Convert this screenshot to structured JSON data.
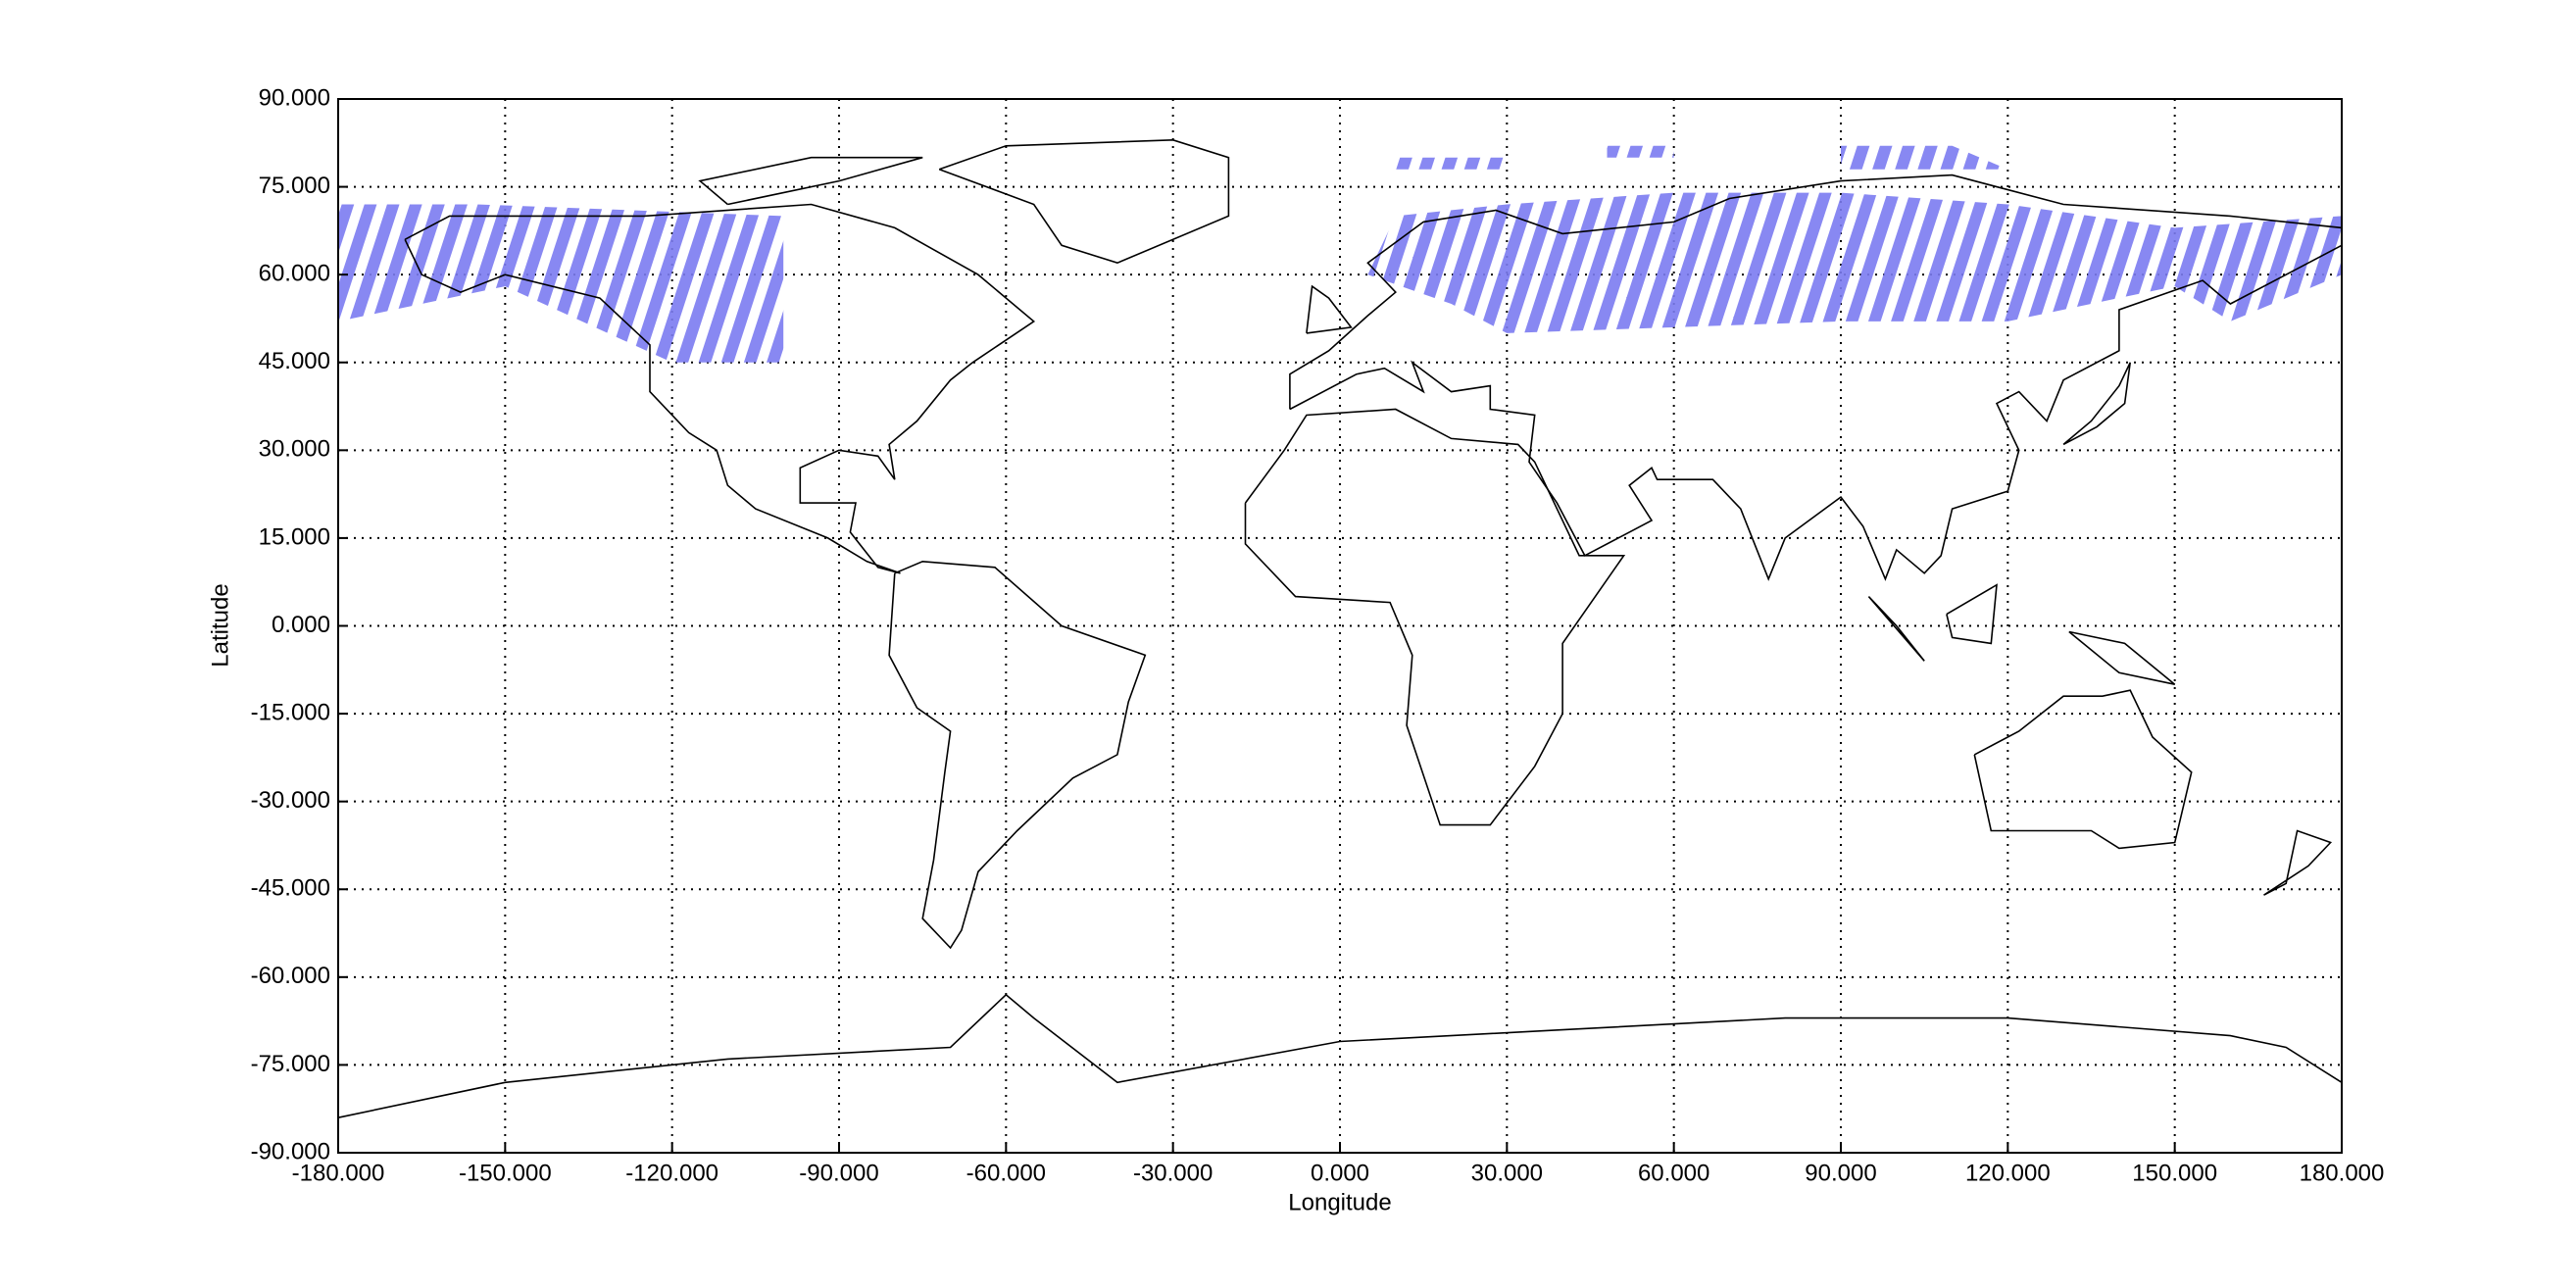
{
  "chart_data": {
    "type": "map",
    "xlabel": "Longitude",
    "ylabel": "Latitude",
    "xlim": [
      -180,
      180
    ],
    "ylim": [
      -90,
      90
    ],
    "xticks": [
      {
        "value": -180,
        "label": "-180.000"
      },
      {
        "value": -150,
        "label": "-150.000"
      },
      {
        "value": -120,
        "label": "-120.000"
      },
      {
        "value": -90,
        "label": "-90.000"
      },
      {
        "value": -60,
        "label": "-60.000"
      },
      {
        "value": -30,
        "label": "-30.000"
      },
      {
        "value": 0,
        "label": "0.000"
      },
      {
        "value": 30,
        "label": "30.000"
      },
      {
        "value": 60,
        "label": "60.000"
      },
      {
        "value": 90,
        "label": "90.000"
      },
      {
        "value": 120,
        "label": "120.000"
      },
      {
        "value": 150,
        "label": "150.000"
      },
      {
        "value": 180,
        "label": "180.000"
      }
    ],
    "yticks": [
      {
        "value": -90,
        "label": "-90.000"
      },
      {
        "value": -75,
        "label": "-75.000"
      },
      {
        "value": -60,
        "label": "-60.000"
      },
      {
        "value": -45,
        "label": "-45.000"
      },
      {
        "value": -30,
        "label": "-30.000"
      },
      {
        "value": -15,
        "label": "-15.000"
      },
      {
        "value": 0,
        "label": "0.000"
      },
      {
        "value": 15,
        "label": "15.000"
      },
      {
        "value": 30,
        "label": "30.000"
      },
      {
        "value": 45,
        "label": "45.000"
      },
      {
        "value": 60,
        "label": "60.000"
      },
      {
        "value": 75,
        "label": "75.000"
      },
      {
        "value": 90,
        "label": "90.000"
      }
    ],
    "grid": true,
    "color": "#7b7bf0"
  }
}
